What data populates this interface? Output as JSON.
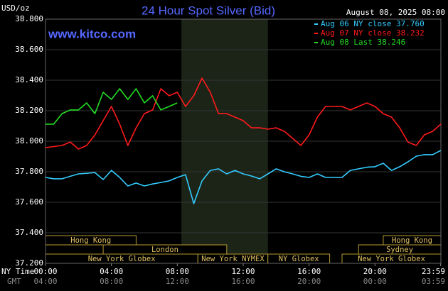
{
  "chart_data": {
    "type": "line",
    "title": "24 Hour Spot Silver (Bid)",
    "timestamp": "August 08, 2025 08:00",
    "watermark": "www.kitco.com",
    "y_label": "USD/oz",
    "x_label": "NY Time",
    "x2_label": "GMT",
    "xlim": [
      0,
      24
    ],
    "xticks": [
      {
        "value": 0,
        "label": "00:00"
      },
      {
        "value": 4,
        "label": "04:00"
      },
      {
        "value": 8,
        "label": "08:00"
      },
      {
        "value": 12,
        "label": "12:00"
      },
      {
        "value": 16,
        "label": "16:00"
      },
      {
        "value": 20,
        "label": "20:00"
      },
      {
        "value": 23.983,
        "label": "23:59"
      }
    ],
    "gmt_labels": [
      "04:00",
      "08:00",
      "12:00",
      "16:00",
      "20:00",
      "00:00",
      "03:59"
    ],
    "ylim": [
      37.2,
      38.8
    ],
    "yticks": [
      {
        "value": 37.2,
        "label": "37.200"
      },
      {
        "value": 37.4,
        "label": "37.400"
      },
      {
        "value": 37.6,
        "label": "37.600"
      },
      {
        "value": 37.8,
        "label": "37.800"
      },
      {
        "value": 38.0,
        "label": "38.000"
      },
      {
        "value": 38.2,
        "label": "38.200"
      },
      {
        "value": 38.4,
        "label": "38.400"
      },
      {
        "value": 38.6,
        "label": "38.600"
      },
      {
        "value": 38.8,
        "label": "38.800"
      }
    ],
    "grid": true,
    "highlight": [
      8.25,
      13.5
    ],
    "x": [
      0,
      0.5,
      1,
      1.5,
      2,
      2.5,
      3,
      3.5,
      4,
      4.5,
      5,
      5.5,
      6,
      6.5,
      7,
      7.5,
      8,
      8.5,
      9,
      9.5,
      10,
      10.5,
      11,
      11.5,
      12,
      12.5,
      13,
      13.5,
      14,
      14.5,
      15,
      15.5,
      16,
      16.5,
      17,
      17.5,
      18,
      18.5,
      19,
      19.5,
      20,
      20.5,
      21,
      21.5,
      22,
      22.5,
      23,
      23.5,
      24
    ],
    "series": [
      {
        "name": "Aug 06 NY close 37.760",
        "color": "#33ccff",
        "values": [
          37.763,
          37.754,
          37.754,
          37.77,
          37.786,
          37.79,
          37.795,
          37.749,
          37.809,
          37.763,
          37.707,
          37.726,
          37.707,
          37.72,
          37.73,
          37.74,
          37.763,
          37.781,
          37.591,
          37.74,
          37.809,
          37.819,
          37.786,
          37.809,
          37.786,
          37.772,
          37.754,
          37.786,
          37.819,
          37.8,
          37.786,
          37.77,
          37.763,
          37.786,
          37.763,
          37.763,
          37.763,
          37.809,
          37.819,
          37.83,
          37.833,
          37.856,
          37.809,
          37.833,
          37.865,
          37.902,
          37.912,
          37.912,
          37.94
        ]
      },
      {
        "name": "Aug 07 NY close 38.232",
        "color": "#ff1a1a",
        "values": [
          37.958,
          37.965,
          37.972,
          37.995,
          37.949,
          37.972,
          38.042,
          38.135,
          38.228,
          38.112,
          37.972,
          38.088,
          38.181,
          38.205,
          38.344,
          38.298,
          38.321,
          38.228,
          38.298,
          38.414,
          38.321,
          38.181,
          38.181,
          38.158,
          38.135,
          38.088,
          38.088,
          38.079,
          38.088,
          38.065,
          38.019,
          37.972,
          38.042,
          38.158,
          38.228,
          38.228,
          38.228,
          38.205,
          38.228,
          38.251,
          38.228,
          38.181,
          38.158,
          38.088,
          37.995,
          37.972,
          38.042,
          38.065,
          38.112
        ]
      },
      {
        "name": "Aug 08 Last 38.246",
        "color": "#22dd22",
        "values": [
          38.112,
          38.112,
          38.181,
          38.205,
          38.205,
          38.251,
          38.181,
          38.321,
          38.274,
          38.344,
          38.274,
          38.344,
          38.251,
          38.298,
          38.205,
          38.228,
          38.251,
          null,
          null,
          null,
          null,
          null,
          null,
          null,
          null,
          null,
          null,
          null,
          null,
          null,
          null,
          null,
          null,
          null,
          null,
          null,
          null,
          null,
          null,
          null,
          null,
          null,
          null,
          null,
          null,
          null,
          null,
          null,
          null
        ]
      }
    ],
    "sessions": [
      [
        {
          "label": "Hong Kong",
          "start": 0,
          "end": 5.5
        },
        {
          "label": "Hong Kong",
          "start": 20.5,
          "end": 24
        }
      ],
      [
        {
          "label": "London",
          "start": 3.5,
          "end": 11
        },
        {
          "label": "Sydney",
          "start": 19,
          "end": 24
        }
      ],
      [
        {
          "label": "New York Globex",
          "start": 0,
          "end": 9.25
        },
        {
          "label": "New York NYMEX",
          "start": 9.25,
          "end": 13.5
        },
        {
          "label": "NY Globex",
          "start": 13.5,
          "end": 17.25
        },
        {
          "label": "New York Globex",
          "start": 18,
          "end": 24
        }
      ]
    ]
  }
}
